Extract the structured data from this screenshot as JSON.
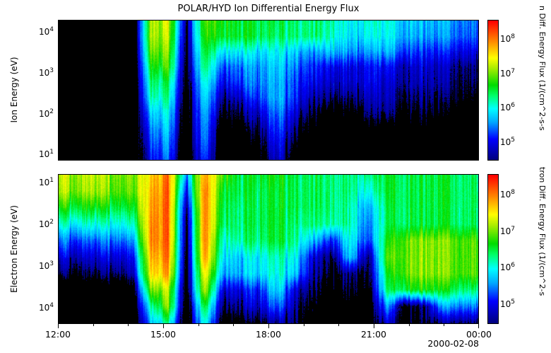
{
  "title": "POLAR/HYD  Ion Differential Energy Flux",
  "date_label": "2000-02-08",
  "x_axis": {
    "tick_labels": [
      "12:00",
      "15:00",
      "18:00",
      "21:00",
      "00:00"
    ],
    "major_every_hours": 3,
    "minor_every_hours": 1,
    "span_hours": 12
  },
  "panels": [
    {
      "id": "ion",
      "ylabel": "Ion Energy (eV)",
      "ytick_exponents": [
        4,
        3,
        2,
        1
      ],
      "y_log_range": [
        0.8,
        4.25
      ],
      "y_inverted": false,
      "colorbar_label": "n Diff. Energy Flux (1/(cm^2-s-s",
      "colorbar_tick_exponents": [
        8,
        7,
        6,
        5
      ]
    },
    {
      "id": "electron",
      "ylabel": "Electron Energy (eV)",
      "ytick_exponents": [
        1,
        2,
        3,
        4
      ],
      "y_log_range": [
        0.85,
        4.45
      ],
      "y_inverted": true,
      "colorbar_label": "tron Diff. Energy Flux (1/(cm^2-s",
      "colorbar_tick_exponents": [
        8,
        7,
        6,
        5
      ]
    }
  ],
  "chart_data": {
    "type": "heatmap",
    "title": "POLAR/HYD  Ion Differential Energy Flux",
    "date": "2000-02-08",
    "time_range": [
      "12:00",
      "00:00"
    ],
    "x_tick_labels": [
      "12:00",
      "15:00",
      "18:00",
      "21:00",
      "00:00"
    ],
    "grid_column_step_minutes": 30,
    "value_scale": "log10 differential energy flux",
    "black_below_log10": 4.4,
    "colorbar": {
      "vmin_log10": 4.4,
      "vmax_log10": 8.5,
      "tick_exponents": [
        8,
        7,
        6,
        5
      ]
    },
    "colormap_stops": [
      [
        4.4,
        "#000080"
      ],
      [
        5.0,
        "#0000ff"
      ],
      [
        5.5,
        "#00a8ff"
      ],
      [
        5.9,
        "#00ffff"
      ],
      [
        6.3,
        "#00ff66"
      ],
      [
        6.6,
        "#00dd00"
      ],
      [
        7.1,
        "#aaee00"
      ],
      [
        7.4,
        "#ffff00"
      ],
      [
        7.9,
        "#ff8800"
      ],
      [
        8.5,
        "#ff0000"
      ]
    ],
    "panels": [
      {
        "name": "ion",
        "ylabel": "Ion Energy (eV)",
        "energy_range_eV": [
          10,
          18000
        ],
        "rows_order": "high_energy_top_to_low_energy_bottom",
        "log10_flux": [
          [
            3.5,
            3.5,
            3.5,
            3.5,
            3.5,
            7.0,
            7.3,
            4.5,
            6.8,
            6.6,
            6.5,
            6.4,
            6.4,
            6.3,
            6.2,
            6.1,
            5.9,
            5.9,
            6.0,
            5.7,
            5.6,
            5.6,
            5.5,
            5.4
          ],
          [
            3.5,
            3.5,
            3.5,
            3.5,
            3.5,
            7.0,
            7.2,
            4.4,
            6.7,
            6.5,
            6.5,
            6.4,
            6.3,
            6.3,
            6.2,
            6.0,
            5.8,
            5.8,
            5.9,
            5.6,
            5.5,
            5.5,
            5.4,
            5.3
          ],
          [
            3.5,
            3.5,
            3.5,
            3.5,
            3.5,
            6.8,
            7.0,
            4.3,
            6.5,
            5.8,
            5.9,
            5.8,
            5.9,
            5.7,
            5.4,
            5.6,
            5.5,
            5.4,
            5.6,
            5.2,
            5.1,
            5.1,
            5.0,
            4.9
          ],
          [
            3.5,
            3.5,
            3.5,
            3.5,
            3.5,
            6.5,
            6.8,
            4.2,
            6.3,
            5.2,
            5.4,
            5.5,
            5.7,
            5.4,
            5.0,
            4.9,
            4.9,
            4.9,
            5.0,
            4.7,
            4.8,
            4.7,
            4.6,
            4.5
          ],
          [
            3.5,
            3.5,
            3.5,
            3.5,
            3.5,
            6.2,
            6.4,
            4.1,
            6.0,
            4.9,
            5.2,
            5.4,
            5.6,
            5.2,
            4.8,
            4.7,
            4.8,
            4.8,
            4.8,
            4.6,
            4.7,
            4.6,
            4.5,
            4.4
          ],
          [
            3.5,
            3.5,
            3.5,
            3.5,
            3.5,
            6.0,
            6.2,
            4.0,
            5.8,
            4.5,
            4.8,
            5.2,
            5.6,
            5.1,
            4.5,
            4.4,
            4.5,
            4.6,
            4.7,
            4.4,
            4.5,
            4.4,
            4.4,
            4.2
          ],
          [
            3.5,
            3.5,
            3.5,
            3.5,
            3.5,
            5.6,
            5.9,
            3.9,
            5.6,
            4.2,
            4.4,
            4.8,
            5.4,
            4.8,
            4.2,
            4.0,
            4.1,
            4.4,
            4.5,
            4.2,
            4.3,
            4.2,
            4.1,
            4.0
          ],
          [
            3.5,
            3.5,
            3.5,
            3.5,
            3.5,
            5.3,
            5.7,
            3.8,
            5.5,
            3.9,
            4.0,
            4.5,
            5.2,
            4.5,
            3.9,
            3.8,
            3.8,
            4.0,
            4.1,
            3.9,
            4.0,
            3.9,
            3.8,
            3.8
          ],
          [
            3.5,
            3.5,
            3.5,
            3.5,
            3.5,
            5.1,
            5.5,
            3.7,
            5.4,
            3.7,
            3.8,
            4.2,
            5.0,
            4.2,
            3.7,
            3.6,
            3.6,
            3.8,
            3.9,
            3.7,
            3.8,
            3.7,
            3.6,
            3.6
          ],
          [
            3.5,
            3.5,
            3.5,
            3.5,
            3.5,
            4.9,
            5.3,
            3.6,
            5.2,
            3.6,
            3.6,
            4.0,
            4.8,
            4.0,
            3.6,
            3.5,
            3.5,
            3.6,
            3.7,
            3.6,
            3.6,
            3.5,
            3.5,
            3.5
          ]
        ]
      },
      {
        "name": "electron",
        "ylabel": "Electron Energy (eV)",
        "energy_range_eV": [
          10,
          18000
        ],
        "rows_order": "low_energy_top_to_high_energy_bottom",
        "log10_flux": [
          [
            7.2,
            7.1,
            7.2,
            6.9,
            7.0,
            7.5,
            8.0,
            5.5,
            7.8,
            6.8,
            6.4,
            6.5,
            6.6,
            6.4,
            6.3,
            6.2,
            6.3,
            6.1,
            6.5,
            6.4,
            6.4,
            6.5,
            6.4,
            6.4
          ],
          [
            7.1,
            7.0,
            7.1,
            6.8,
            6.9,
            7.6,
            8.1,
            5.0,
            8.0,
            6.5,
            6.4,
            6.4,
            6.5,
            6.4,
            6.3,
            6.2,
            6.3,
            5.8,
            6.5,
            6.4,
            6.4,
            6.5,
            6.4,
            6.4
          ],
          [
            6.6,
            6.5,
            6.6,
            6.4,
            6.5,
            7.7,
            8.1,
            4.6,
            8.0,
            6.4,
            6.3,
            6.4,
            6.5,
            6.4,
            6.3,
            6.2,
            6.2,
            5.4,
            6.4,
            6.4,
            6.4,
            6.5,
            6.4,
            6.4
          ],
          [
            6.0,
            5.9,
            6.0,
            5.9,
            6.0,
            7.8,
            8.1,
            4.4,
            8.0,
            6.3,
            6.3,
            6.4,
            6.5,
            6.3,
            6.2,
            6.1,
            6.2,
            5.2,
            6.4,
            6.4,
            6.4,
            6.5,
            6.4,
            6.4
          ],
          [
            5.3,
            5.2,
            5.3,
            5.3,
            5.4,
            7.8,
            8.1,
            4.3,
            8.0,
            6.0,
            6.2,
            6.3,
            6.5,
            6.2,
            5.5,
            5.0,
            6.0,
            5.0,
            6.6,
            6.9,
            7.0,
            7.0,
            6.9,
            6.9
          ],
          [
            4.8,
            4.7,
            4.8,
            4.8,
            4.9,
            7.6,
            8.0,
            4.2,
            7.9,
            5.8,
            5.7,
            5.9,
            6.1,
            5.9,
            4.7,
            4.3,
            5.8,
            4.3,
            6.8,
            6.9,
            7.0,
            7.0,
            6.9,
            6.9
          ],
          [
            4.4,
            4.3,
            4.4,
            4.4,
            4.6,
            7.4,
            7.8,
            4.1,
            7.5,
            5.5,
            5.6,
            5.8,
            6.0,
            5.7,
            4.5,
            4.2,
            4.6,
            4.2,
            6.5,
            6.9,
            7.0,
            7.0,
            6.9,
            6.9
          ],
          [
            3.7,
            3.7,
            3.8,
            3.8,
            4.0,
            6.8,
            7.2,
            4.0,
            7.2,
            4.8,
            4.9,
            5.1,
            5.8,
            4.8,
            4.3,
            4.0,
            4.4,
            4.0,
            6.3,
            6.5,
            6.6,
            6.6,
            6.4,
            6.3
          ],
          [
            3.6,
            3.6,
            3.6,
            3.6,
            3.8,
            6.0,
            7.0,
            3.9,
            6.5,
            4.4,
            4.6,
            4.8,
            5.3,
            4.6,
            4.0,
            3.8,
            4.0,
            3.9,
            5.5,
            4.2,
            4.4,
            5.5,
            5.5,
            5.4
          ],
          [
            3.5,
            3.5,
            3.5,
            3.5,
            3.6,
            5.5,
            6.2,
            3.8,
            6.0,
            4.0,
            4.1,
            4.3,
            4.6,
            4.4,
            3.9,
            3.7,
            3.9,
            3.8,
            4.8,
            4.1,
            4.3,
            4.5,
            4.6,
            4.5
          ]
        ]
      }
    ]
  }
}
